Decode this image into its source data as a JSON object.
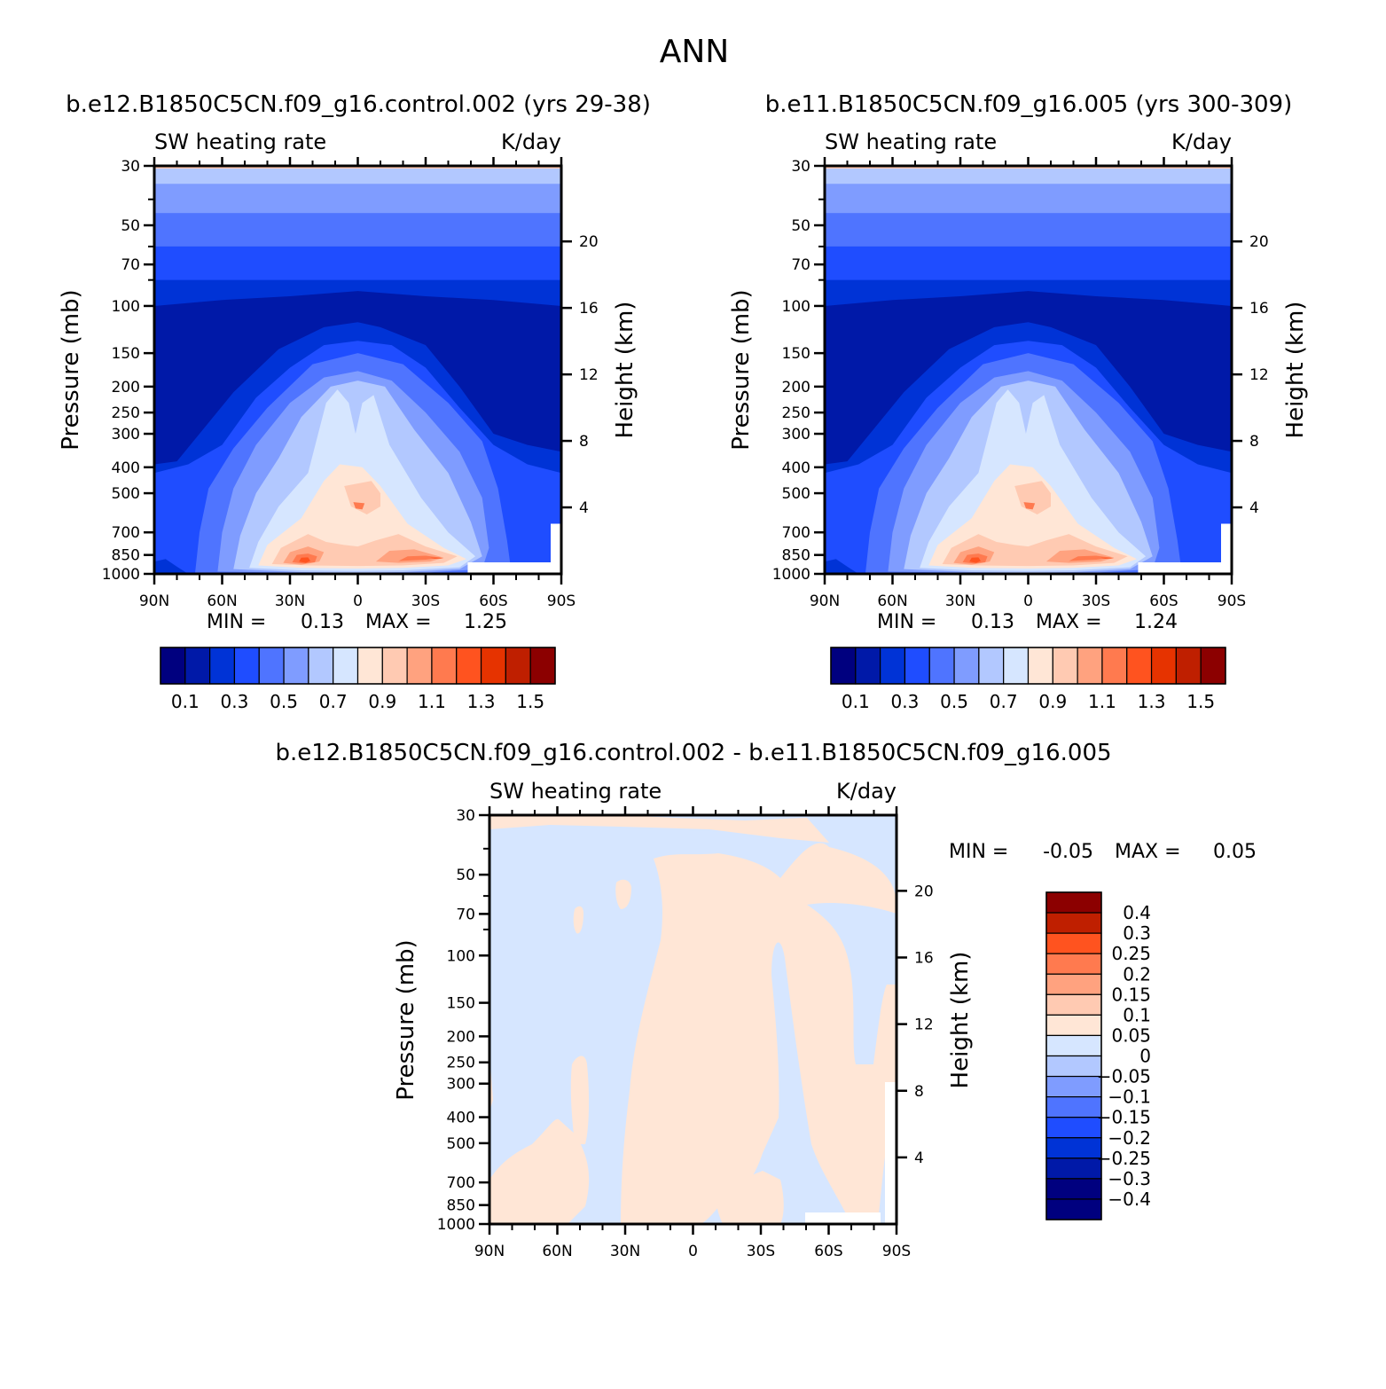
{
  "title": "ANN",
  "tick_labels": {
    "pressure": [
      "30",
      "50",
      "70",
      "100",
      "150",
      "200",
      "250",
      "300",
      "400",
      "500",
      "700",
      "850",
      "1000"
    ],
    "height": [
      "20",
      "16",
      "12",
      "8",
      "4"
    ],
    "latitude": [
      "90N",
      "60N",
      "30N",
      "0",
      "30S",
      "60S",
      "90S"
    ]
  },
  "axis_labels": {
    "left": "Pressure (mb)",
    "right": "Height (km)"
  },
  "panel_header": {
    "left": "SW heating rate",
    "right": "K/day"
  },
  "colors": {
    "abs_levels": [
      "#00007f",
      "#0019a8",
      "#0033d6",
      "#1f4dff",
      "#4f74ff",
      "#7f9cff",
      "#b2c8ff",
      "#d6e6ff",
      "#ffe6d6",
      "#ffcab2",
      "#ffa27f",
      "#ff7a4f",
      "#ff531f",
      "#e63300",
      "#bf1f00",
      "#8c0000"
    ],
    "diff_levels": [
      "#00007f",
      "#0019a8",
      "#0033d6",
      "#1f4dff",
      "#4f74ff",
      "#7f9cff",
      "#b2c8ff",
      "#d6e6ff",
      "#ffe6d6",
      "#ffcab2",
      "#ffa27f",
      "#ff7a4f",
      "#ff531f",
      "#bf1f00",
      "#8c0000"
    ]
  },
  "chart_data": [
    {
      "type": "heatmap",
      "title": "b.e12.B1850C5CN.f09_g16.control.002 (yrs 29-38)",
      "subtitle_left": "SW heating rate",
      "subtitle_right": "K/day",
      "xlabel": "",
      "ylabel": "Pressure (mb)",
      "ylabel_right": "Height (km)",
      "x_ticks": [
        "90N",
        "60N",
        "30N",
        "0",
        "30S",
        "60S",
        "90S"
      ],
      "y_ticks": [
        30,
        50,
        70,
        100,
        150,
        200,
        250,
        300,
        400,
        500,
        700,
        850,
        1000
      ],
      "y_right_ticks": [
        20,
        16,
        12,
        8,
        4
      ],
      "ylim": [
        1000,
        30
      ],
      "y_scale": "log",
      "min_label": "MIN =",
      "min": "0.13",
      "max_label": "MAX =",
      "max": "1.25",
      "colorbar_labels": [
        "0.1",
        "0.3",
        "0.5",
        "0.7",
        "0.9",
        "1.1",
        "1.3",
        "1.5"
      ],
      "features": [
        {
          "lat": -10,
          "p": 560,
          "value": 1.05
        },
        {
          "lat": -25,
          "p": 900,
          "value": 1.25
        },
        {
          "lat": 25,
          "p": 890,
          "value": 1.15
        }
      ]
    },
    {
      "type": "heatmap",
      "title": "b.e11.B1850C5CN.f09_g16.005 (yrs 300-309)",
      "subtitle_left": "SW heating rate",
      "subtitle_right": "K/day",
      "xlabel": "",
      "ylabel": "Pressure (mb)",
      "ylabel_right": "Height (km)",
      "x_ticks": [
        "90N",
        "60N",
        "30N",
        "0",
        "30S",
        "60S",
        "90S"
      ],
      "y_ticks": [
        30,
        50,
        70,
        100,
        150,
        200,
        250,
        300,
        400,
        500,
        700,
        850,
        1000
      ],
      "y_right_ticks": [
        20,
        16,
        12,
        8,
        4
      ],
      "ylim": [
        1000,
        30
      ],
      "y_scale": "log",
      "min_label": "MIN =",
      "min": "0.13",
      "max_label": "MAX =",
      "max": "1.24",
      "colorbar_labels": [
        "0.1",
        "0.3",
        "0.5",
        "0.7",
        "0.9",
        "1.1",
        "1.3",
        "1.5"
      ],
      "features": [
        {
          "lat": -10,
          "p": 560,
          "value": 1.05
        },
        {
          "lat": -25,
          "p": 900,
          "value": 1.24
        },
        {
          "lat": 25,
          "p": 890,
          "value": 1.15
        }
      ]
    },
    {
      "type": "heatmap",
      "title": "b.e12.B1850C5CN.f09_g16.control.002 - b.e11.B1850C5CN.f09_g16.005",
      "subtitle_left": "SW heating rate",
      "subtitle_right": "K/day",
      "xlabel": "",
      "ylabel": "Pressure (mb)",
      "ylabel_right": "Height (km)",
      "x_ticks": [
        "90N",
        "60N",
        "30N",
        "0",
        "30S",
        "60S",
        "90S"
      ],
      "y_ticks": [
        30,
        50,
        70,
        100,
        150,
        200,
        250,
        300,
        400,
        500,
        700,
        850,
        1000
      ],
      "y_right_ticks": [
        20,
        16,
        12,
        8,
        4
      ],
      "ylim": [
        1000,
        30
      ],
      "y_scale": "log",
      "min_label": "MIN =",
      "min": "-0.05",
      "max_label": "MAX =",
      "max": "0.05",
      "colorbar_labels": [
        "0.4",
        "0.3",
        "0.25",
        "0.2",
        "0.15",
        "0.1",
        "0.05",
        "0",
        "-0.05",
        "-0.1",
        "-0.15",
        "-0.2",
        "-0.25",
        "-0.3",
        "-0.4"
      ]
    }
  ]
}
